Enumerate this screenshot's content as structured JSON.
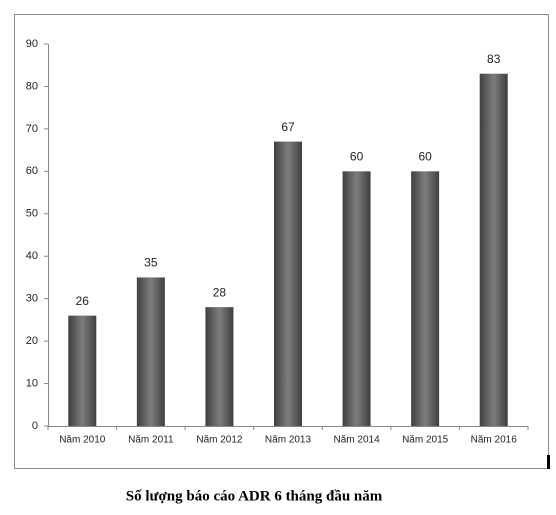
{
  "chart_data": {
    "type": "bar",
    "title": "Số lượng báo cáo ADR 6 tháng đầu năm",
    "categories": [
      "Năm 2010",
      "Năm 2011",
      "Năm 2012",
      "Năm 2013",
      "Năm 2014",
      "Năm 2015",
      "Năm 2016"
    ],
    "values": [
      26,
      35,
      28,
      67,
      60,
      60,
      83
    ],
    "color": "#5f5f5f",
    "ylim": [
      0,
      90
    ],
    "yticks": [
      0,
      10,
      20,
      30,
      40,
      50,
      60,
      70,
      80,
      90
    ],
    "grid": false
  }
}
